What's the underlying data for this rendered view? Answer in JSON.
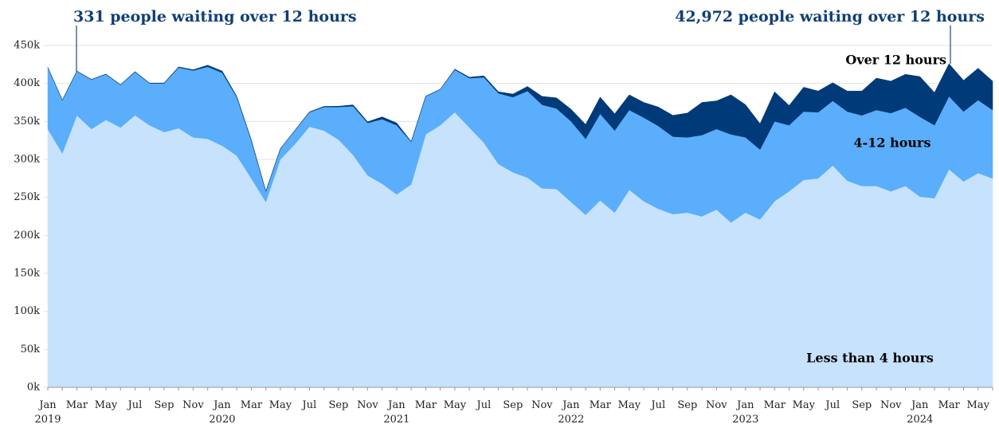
{
  "chart_data": {
    "type": "stacked_area",
    "annotations": [
      "331 people waiting over 12 hours",
      "42,972 people waiting over 12 hours"
    ],
    "categories": [
      "Jan 2019",
      null,
      "Mar",
      null,
      "May",
      null,
      "Jul",
      null,
      "Sep",
      null,
      "Nov",
      null,
      "Jan 2020",
      null,
      "Mar",
      null,
      "May",
      null,
      "Jul",
      null,
      "Sep",
      null,
      "Nov",
      null,
      "Jan 2021",
      null,
      "Mar",
      null,
      "May",
      null,
      "Jul",
      null,
      "Sep",
      null,
      "Nov",
      null,
      "Jan 2022",
      null,
      "Mar",
      null,
      "May",
      null,
      "Jul",
      null,
      "Sep",
      null,
      "Nov",
      null,
      "Jan 2023",
      null,
      "Mar",
      null,
      "May",
      null,
      "Jul",
      null,
      "Sep",
      null,
      "Nov",
      null,
      "Jan 2024",
      null,
      "Mar",
      null,
      "May",
      null
    ],
    "series": [
      {
        "name": "Less than 4 hours",
        "color": "#c6e2fd",
        "values": [
          340000,
          308000,
          358000,
          340000,
          352000,
          342000,
          358000,
          345000,
          336000,
          341000,
          329000,
          327000,
          318000,
          305000,
          275000,
          244000,
          300000,
          320000,
          343000,
          338000,
          326000,
          306000,
          279000,
          268000,
          254000,
          267000,
          333000,
          345000,
          362000,
          342000,
          322000,
          294000,
          283000,
          276000,
          262000,
          261000,
          244000,
          227000,
          246000,
          230000,
          260000,
          245000,
          235000,
          228000,
          230000,
          225000,
          234000,
          217000,
          230000,
          221000,
          245000,
          258000,
          273000,
          275000,
          292000,
          272000,
          265000,
          265000,
          258000,
          265000,
          251000,
          249000,
          287000,
          271000,
          282000,
          275000
        ]
      },
      {
        "name": "4-12 hours",
        "color": "#5aaefc",
        "values": [
          81000,
          70000,
          58000,
          65000,
          60000,
          56000,
          57000,
          55000,
          64000,
          80000,
          88000,
          95000,
          96000,
          77000,
          50000,
          14000,
          14000,
          18000,
          19000,
          31000,
          43000,
          64000,
          69000,
          85000,
          91000,
          56000,
          50000,
          47000,
          56000,
          65000,
          86000,
          93000,
          99000,
          114000,
          110000,
          106000,
          106000,
          100000,
          114000,
          108000,
          105000,
          110000,
          109000,
          102000,
          99000,
          107000,
          106000,
          116000,
          99000,
          92000,
          105000,
          87000,
          90000,
          87000,
          85000,
          91000,
          93000,
          100000,
          103000,
          103000,
          105000,
          96000,
          96000,
          92000,
          96000,
          90000
        ]
      },
      {
        "name": "Over 12 hours",
        "color": "#003a78",
        "values": [
          200,
          200,
          331,
          300,
          400,
          400,
          500,
          500,
          600,
          800,
          1000,
          2000,
          2200,
          1000,
          800,
          200,
          300,
          400,
          600,
          800,
          1000,
          1800,
          1500,
          3000,
          3000,
          500,
          300,
          300,
          800,
          1200,
          2000,
          2000,
          4000,
          6000,
          11000,
          14000,
          16000,
          19000,
          22000,
          22000,
          20000,
          20000,
          25000,
          28000,
          32000,
          43000,
          37000,
          52000,
          43000,
          34000,
          39000,
          26000,
          32000,
          28000,
          24000,
          27000,
          32000,
          42000,
          42000,
          44000,
          53000,
          43000,
          42972,
          41000,
          42000,
          38000
        ]
      }
    ],
    "ylim": [
      0,
      450000
    ],
    "yticks": [
      {
        "value": 0,
        "label": "0k"
      },
      {
        "value": 50000,
        "label": "50k"
      },
      {
        "value": 100000,
        "label": "100k"
      },
      {
        "value": 150000,
        "label": "150k"
      },
      {
        "value": 200000,
        "label": "200k"
      },
      {
        "value": 250000,
        "label": "250k"
      },
      {
        "value": 300000,
        "label": "300k"
      },
      {
        "value": 350000,
        "label": "350k"
      },
      {
        "value": 400000,
        "label": "400k"
      },
      {
        "value": 450000,
        "label": "450k"
      }
    ],
    "grid": true
  }
}
